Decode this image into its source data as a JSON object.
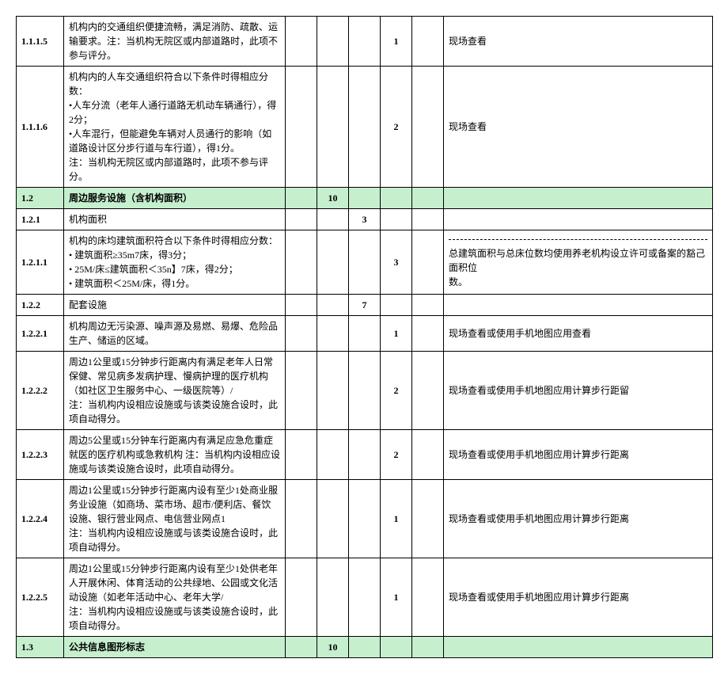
{
  "colors": {
    "section_bg": "#c6efce",
    "border": "#000000",
    "text": "#000000",
    "page_bg": "#ffffff"
  },
  "rows": [
    {
      "id": "1.1.1.5",
      "desc": "机构内的交通组织便捷流畅，满足消防、疏散、运输要求。注：当机构无院区或内部道路时，此项不参与评分。",
      "s1": "",
      "s2": "",
      "s3": "",
      "s4": "1",
      "note": "现场查看",
      "type": "normal"
    },
    {
      "id": "1.1.1.6",
      "desc": "机构内的人车交通组织符合以下条件时得相应分数：\n•人车分流（老年人通行道路无机动车辆通行），得2分；\n•人车混行，但能避免车辆对人员通行的影响（如道路设计区分步行道与车行道），得1分。\n注：当机构无院区或内部道路时，此项不参与评分。",
      "s1": "",
      "s2": "",
      "s3": "",
      "s4": "2",
      "note": "现场查看",
      "type": "normal"
    },
    {
      "id": "1.2",
      "desc": "周边服务设施（含机构面积）",
      "s1": "",
      "s2": "10",
      "s3": "",
      "s4": "",
      "note": "",
      "type": "section"
    },
    {
      "id": "1.2.1",
      "desc": "机构面积",
      "s1": "",
      "s2": "",
      "s3": "3",
      "s4": "",
      "note": "",
      "type": "plain"
    },
    {
      "id": "1.2.1.1",
      "desc": "机构的床均建筑面积符合以下条件时得相应分数：\n• 建筑面积≥35m7床，得3分；\n• 25M/床≤建筑面积＜35n】7床，得2分；\n• 建筑面积＜25M/床，得1分。",
      "s1": "",
      "s2": "",
      "s3": "",
      "s4": "3",
      "note_dashed": true,
      "note": "总建筑面积与总床位数均使用养老机构设立许可或备案的豁己面积位\n数。",
      "type": "normal"
    },
    {
      "id": "1.2.2",
      "desc": "配套设施",
      "s1": "",
      "s2": "",
      "s3": "7",
      "s4": "",
      "note": "",
      "type": "plain"
    },
    {
      "id": "1.2.2.1",
      "desc": "机构周边无污染源、噪声源及易燃、易爆、危险品生产、储运的区域。",
      "s1": "",
      "s2": "",
      "s3": "",
      "s4": "1",
      "note": "现场查看或使用手机地图应用查看",
      "type": "normal"
    },
    {
      "id": "1.2.2.2",
      "desc": "周边1公里或15分钟步行距离内有满足老年人日常保健、常见病多发病护理、慢病护理的医疗机构（如社区卫生服务中心、一级医院等）/\n注：当机构内设相应设施或与该类设施合设时，此项自动得分。",
      "s1": "",
      "s2": "",
      "s3": "",
      "s4": "2",
      "note": "现场查看或使用手机地图应用计算步行距留",
      "type": "normal"
    },
    {
      "id": "1.2.2.3",
      "desc": "周边5公里或15分钟车行距离内有满足应急危重症就医的医疗机构或急救机构 注：当机构内设相应设施或与该类设施合设时，此项自动得分。",
      "s1": "",
      "s2": "",
      "s3": "",
      "s4": "2",
      "note": "现场查看或使用手机地图应用计算步行距离",
      "type": "normal"
    },
    {
      "id": "1.2.2.4",
      "desc": "周边1公里或15分钟步行距离内设有至少1处商业服务业设施（如商场、菜市场、超市/便利店、餐饮设施、银行营业网点、电信营业网点1\n注：当机构内设相应设施或与该类设施合设时，此项自动得分。",
      "s1": "",
      "s2": "",
      "s3": "",
      "s4": "1",
      "note": "现场查看或使用手机地图应用计算步行距离",
      "type": "normal"
    },
    {
      "id": "1.2.2.5",
      "desc": "周边1公里或15分钟步行距离内设有至少1处供老年人开展休闲、体育活动的公共绿地、公园或文化活动设施（如老年活动中心、老年大学/\n注：当机构内设相应设施或与该类设施合设时，此项自动得分。",
      "s1": "",
      "s2": "",
      "s3": "",
      "s4": "1",
      "note": "现场查看或使用手机地图应用计算步行距离",
      "type": "normal"
    },
    {
      "id": "1.3",
      "desc": "公共信息图形标志",
      "s1": "",
      "s2": "10",
      "s3": "",
      "s4": "",
      "note": "",
      "type": "section"
    }
  ]
}
